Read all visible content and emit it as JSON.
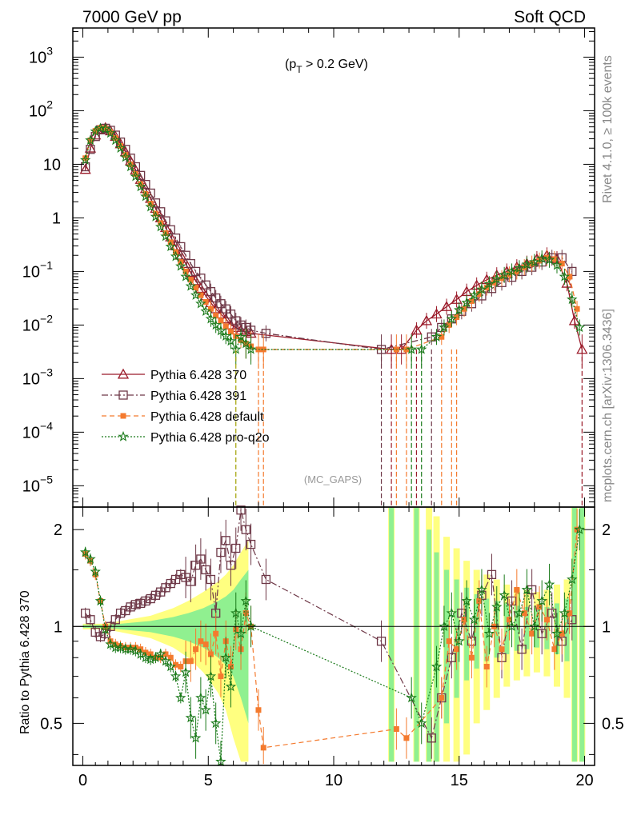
{
  "header": {
    "left": "7000 GeV pp",
    "right": "Soft QCD"
  },
  "side_labels": {
    "rivet": "Rivet 4.1.0, ≥ 100k events",
    "mcplots": "mcplots.cern.ch [arXiv:1306.3436]"
  },
  "chart_data": {
    "type": "line",
    "title_parts": {
      "open": "(p",
      "sub": "T",
      "close": " > 0.2 GeV)"
    },
    "watermark": "(MC_GAPS)",
    "xlim": [
      -0.4,
      20.4
    ],
    "top": {
      "yscale": "log",
      "ylim": [
        4e-06,
        3500
      ],
      "yticks": [
        {
          "v": 1e-05,
          "base": "10",
          "exp": "−5"
        },
        {
          "v": 0.0001,
          "base": "10",
          "exp": "−4"
        },
        {
          "v": 0.001,
          "base": "10",
          "exp": "−3"
        },
        {
          "v": 0.01,
          "base": "10",
          "exp": "−2"
        },
        {
          "v": 0.1,
          "base": "10",
          "exp": "−1"
        },
        {
          "v": 1,
          "base": "1",
          "exp": ""
        },
        {
          "v": 10,
          "base": "10",
          "exp": ""
        },
        {
          "v": 100,
          "base": "10",
          "exp": "2"
        },
        {
          "v": 1000,
          "base": "10",
          "exp": "3"
        }
      ]
    },
    "ratio": {
      "ylabel": "Ratio to Pythia 6.428 370",
      "ylim": [
        0.37,
        2.35
      ],
      "yticks": [
        0.5,
        1,
        2
      ],
      "band_x": [
        0.0,
        0.3,
        0.6,
        0.9,
        1.2,
        1.5,
        1.8,
        2.1,
        2.4,
        2.7,
        3.0,
        3.3,
        3.6,
        3.9,
        4.2,
        4.5,
        4.8,
        5.1,
        5.4,
        5.7,
        6.0,
        6.3,
        6.6
      ],
      "band_yellow": [
        0.02,
        0.02,
        0.02,
        0.02,
        0.03,
        0.04,
        0.05,
        0.06,
        0.07,
        0.08,
        0.1,
        0.12,
        0.14,
        0.17,
        0.2,
        0.24,
        0.28,
        0.33,
        0.38,
        0.45,
        0.55,
        0.7,
        0.85
      ],
      "band_green": [
        0.01,
        0.01,
        0.01,
        0.01,
        0.015,
        0.02,
        0.025,
        0.03,
        0.035,
        0.04,
        0.05,
        0.06,
        0.07,
        0.085,
        0.1,
        0.12,
        0.14,
        0.17,
        0.2,
        0.24,
        0.3,
        0.4,
        0.5
      ],
      "band_cols_x": [
        12.3,
        13.3,
        13.8,
        14.1,
        14.5,
        14.9,
        15.3,
        15.7,
        16.1,
        16.5,
        16.9,
        17.3,
        17.7,
        18.1,
        18.5,
        18.9,
        19.3,
        19.6,
        19.9
      ],
      "band_cols_yellow": [
        1.35,
        1.35,
        1.35,
        1.2,
        0.9,
        0.75,
        0.6,
        0.5,
        0.45,
        0.4,
        0.35,
        0.32,
        0.3,
        0.28,
        0.3,
        0.35,
        0.4,
        1.35,
        1.35
      ],
      "band_cols_green": [
        1.35,
        1.35,
        1.0,
        0.7,
        0.5,
        0.4,
        0.32,
        0.26,
        0.22,
        0.2,
        0.18,
        0.16,
        0.15,
        0.14,
        0.15,
        0.18,
        0.22,
        1.35,
        1.35
      ]
    },
    "xticks": [
      0,
      5,
      10,
      15,
      20
    ],
    "series": [
      {
        "name": "Pythia 6.428 370",
        "color": "#9b1b2a",
        "marker": "triangle",
        "dash": "",
        "x": [
          0.1,
          0.3,
          0.5,
          0.7,
          0.9,
          1.1,
          1.3,
          1.5,
          1.7,
          1.9,
          2.1,
          2.3,
          2.5,
          2.7,
          2.9,
          3.1,
          3.3,
          3.5,
          3.7,
          3.9,
          4.1,
          4.3,
          4.5,
          4.7,
          4.9,
          5.1,
          5.3,
          5.5,
          5.7,
          5.9,
          6.1,
          6.3,
          6.5,
          6.7,
          12.3,
          12.7,
          13.3,
          13.7,
          14.1,
          14.5,
          14.9,
          15.3,
          15.7,
          16.1,
          16.5,
          16.9,
          17.3,
          17.7,
          18.1,
          18.5,
          18.9,
          19.3,
          19.6,
          19.9
        ],
        "y": [
          8,
          20,
          35,
          45,
          48,
          42,
          33,
          24,
          17,
          11.5,
          7.8,
          5.2,
          3.5,
          2.3,
          1.5,
          1.0,
          0.66,
          0.44,
          0.3,
          0.2,
          0.14,
          0.095,
          0.067,
          0.048,
          0.035,
          0.026,
          0.02,
          0.016,
          0.013,
          0.01,
          0.009,
          0.008,
          0.0075,
          0.007,
          0.0035,
          0.0035,
          0.008,
          0.012,
          0.016,
          0.022,
          0.03,
          0.042,
          0.055,
          0.07,
          0.085,
          0.1,
          0.12,
          0.14,
          0.17,
          0.2,
          0.17,
          0.06,
          0.012,
          0.0035
        ],
        "ratio": []
      },
      {
        "name": "Pythia 6.428 391",
        "color": "#6e3847",
        "marker": "square",
        "dash": "8,3,2,3",
        "x": [
          0.1,
          0.3,
          0.5,
          0.7,
          0.9,
          1.1,
          1.3,
          1.5,
          1.7,
          1.9,
          2.1,
          2.3,
          2.5,
          2.7,
          2.9,
          3.1,
          3.3,
          3.5,
          3.7,
          3.9,
          4.1,
          4.3,
          4.5,
          4.7,
          4.9,
          5.1,
          5.3,
          5.5,
          5.7,
          5.9,
          6.1,
          6.3,
          6.5,
          6.7,
          7.3,
          11.9,
          13.9,
          14.3,
          14.7,
          15.1,
          15.5,
          15.9,
          16.3,
          16.7,
          17.1,
          17.5,
          17.9,
          18.3,
          18.7,
          19.1,
          19.5
        ],
        "y": [
          9,
          19,
          33,
          44,
          47,
          43,
          35,
          26,
          19,
          13,
          9,
          6.2,
          4.2,
          2.9,
          1.9,
          1.3,
          0.88,
          0.6,
          0.42,
          0.29,
          0.2,
          0.14,
          0.1,
          0.075,
          0.056,
          0.042,
          0.032,
          0.025,
          0.02,
          0.016,
          0.012,
          0.01,
          0.009,
          0.008,
          0.007,
          0.0035,
          0.006,
          0.009,
          0.013,
          0.018,
          0.025,
          0.035,
          0.048,
          0.062,
          0.078,
          0.1,
          0.12,
          0.15,
          0.18,
          0.18,
          0.1
        ],
        "ratio": [
          1.1,
          1.05,
          0.96,
          0.93,
          0.95,
          1.0,
          1.05,
          1.1,
          1.12,
          1.15,
          1.17,
          1.18,
          1.2,
          1.22,
          1.25,
          1.28,
          1.32,
          1.36,
          1.4,
          1.45,
          1.42,
          1.38,
          1.55,
          1.62,
          1.5,
          1.4,
          1.1,
          1.7,
          1.85,
          1.55,
          1.75,
          2.3,
          2.0,
          1.8,
          1.4,
          0.9,
          0.45,
          0.6,
          0.8,
          1.1,
          0.9,
          1.25,
          1.45,
          0.8,
          1.2,
          0.85,
          1.3,
          0.95,
          1.1,
          0.9,
          1.05
        ]
      },
      {
        "name": "Pythia 6.428 default",
        "color": "#f47a2e",
        "marker": "fsquare",
        "dash": "6,4",
        "x": [
          0.1,
          0.3,
          0.5,
          0.7,
          0.9,
          1.1,
          1.3,
          1.5,
          1.7,
          1.9,
          2.1,
          2.3,
          2.5,
          2.7,
          2.9,
          3.1,
          3.3,
          3.5,
          3.7,
          3.9,
          4.1,
          4.3,
          4.5,
          4.7,
          4.9,
          5.1,
          5.3,
          5.5,
          5.7,
          5.9,
          6.1,
          6.3,
          6.5,
          6.7,
          7.0,
          7.2,
          12.5,
          12.9,
          14.3,
          14.6,
          14.9,
          15.2,
          15.5,
          15.8,
          16.1,
          16.4,
          16.7,
          17.0,
          17.3,
          17.6,
          17.9,
          18.2,
          18.5,
          18.8,
          19.1,
          19.4,
          19.7
        ],
        "y": [
          13,
          28,
          42,
          48,
          47,
          40,
          31,
          22,
          15,
          10,
          6.6,
          4.3,
          2.8,
          1.85,
          1.2,
          0.8,
          0.52,
          0.35,
          0.23,
          0.15,
          0.1,
          0.07,
          0.05,
          0.036,
          0.027,
          0.02,
          0.015,
          0.012,
          0.0095,
          0.0075,
          0.0062,
          0.0052,
          0.0045,
          0.004,
          0.0035,
          0.0035,
          0.0035,
          0.0035,
          0.006,
          0.01,
          0.014,
          0.02,
          0.028,
          0.038,
          0.05,
          0.062,
          0.075,
          0.088,
          0.1,
          0.12,
          0.14,
          0.16,
          0.18,
          0.17,
          0.14,
          0.08,
          0.02
        ],
        "ratio": [
          1.68,
          1.6,
          1.45,
          1.2,
          1.0,
          0.9,
          0.88,
          0.87,
          0.86,
          0.86,
          0.86,
          0.85,
          0.83,
          0.82,
          0.8,
          0.8,
          0.82,
          0.8,
          0.76,
          0.75,
          0.78,
          0.78,
          0.85,
          0.9,
          0.88,
          0.82,
          0.95,
          0.7,
          0.9,
          0.75,
          0.98,
          0.85,
          1.1,
          1.0,
          0.55,
          0.42,
          0.48,
          0.45,
          0.6,
          0.9,
          0.85,
          1.05,
          0.8,
          1.2,
          0.75,
          1.0,
          0.85,
          1.05,
          1.3,
          1.1,
          0.95,
          1.15,
          1.05,
          0.85,
          0.95,
          1.1,
          2.0
        ]
      },
      {
        "name": "Pythia 6.428 pro-q2o",
        "color": "#1a7a1a",
        "marker": "star",
        "dash": "2,2",
        "x": [
          0.1,
          0.3,
          0.5,
          0.7,
          0.9,
          1.1,
          1.3,
          1.5,
          1.7,
          1.9,
          2.1,
          2.3,
          2.5,
          2.7,
          2.9,
          3.1,
          3.3,
          3.5,
          3.7,
          3.9,
          4.1,
          4.3,
          4.5,
          4.7,
          4.9,
          5.1,
          5.3,
          5.5,
          5.7,
          5.9,
          6.1,
          6.3,
          6.5,
          6.7,
          13.1,
          13.5,
          14.1,
          14.4,
          14.7,
          15.0,
          15.3,
          15.6,
          15.9,
          16.2,
          16.5,
          16.8,
          17.1,
          17.4,
          17.7,
          18.0,
          18.3,
          18.6,
          18.9,
          19.2,
          19.5,
          19.8
        ],
        "y": [
          12,
          28,
          41,
          47,
          46,
          38,
          28,
          20,
          13.5,
          9,
          5.9,
          3.8,
          2.5,
          1.6,
          1.05,
          0.68,
          0.45,
          0.29,
          0.19,
          0.125,
          0.08,
          0.053,
          0.036,
          0.025,
          0.018,
          0.013,
          0.01,
          0.0078,
          0.0062,
          0.005,
          0.0035,
          0.006,
          0.0045,
          0.0035,
          0.0035,
          0.0035,
          0.006,
          0.009,
          0.013,
          0.019,
          0.026,
          0.036,
          0.046,
          0.058,
          0.072,
          0.086,
          0.1,
          0.115,
          0.135,
          0.15,
          0.175,
          0.165,
          0.13,
          0.08,
          0.03,
          0.009
        ],
        "ratio": [
          1.7,
          1.62,
          1.48,
          1.2,
          0.98,
          0.88,
          0.86,
          0.86,
          0.85,
          0.85,
          0.84,
          0.82,
          0.8,
          0.79,
          0.8,
          0.82,
          0.78,
          0.75,
          0.7,
          0.6,
          0.72,
          0.52,
          0.45,
          0.6,
          0.55,
          0.7,
          0.5,
          0.38,
          0.8,
          0.65,
          1.1,
          0.95,
          1.2,
          1.0,
          0.6,
          0.5,
          0.75,
          1.0,
          1.1,
          0.9,
          1.2,
          1.05,
          1.3,
          0.95,
          1.15,
          1.25,
          1.0,
          1.1,
          1.3,
          1.0,
          1.2,
          1.35,
          0.95,
          1.1,
          1.4,
          2.0
        ]
      }
    ]
  }
}
